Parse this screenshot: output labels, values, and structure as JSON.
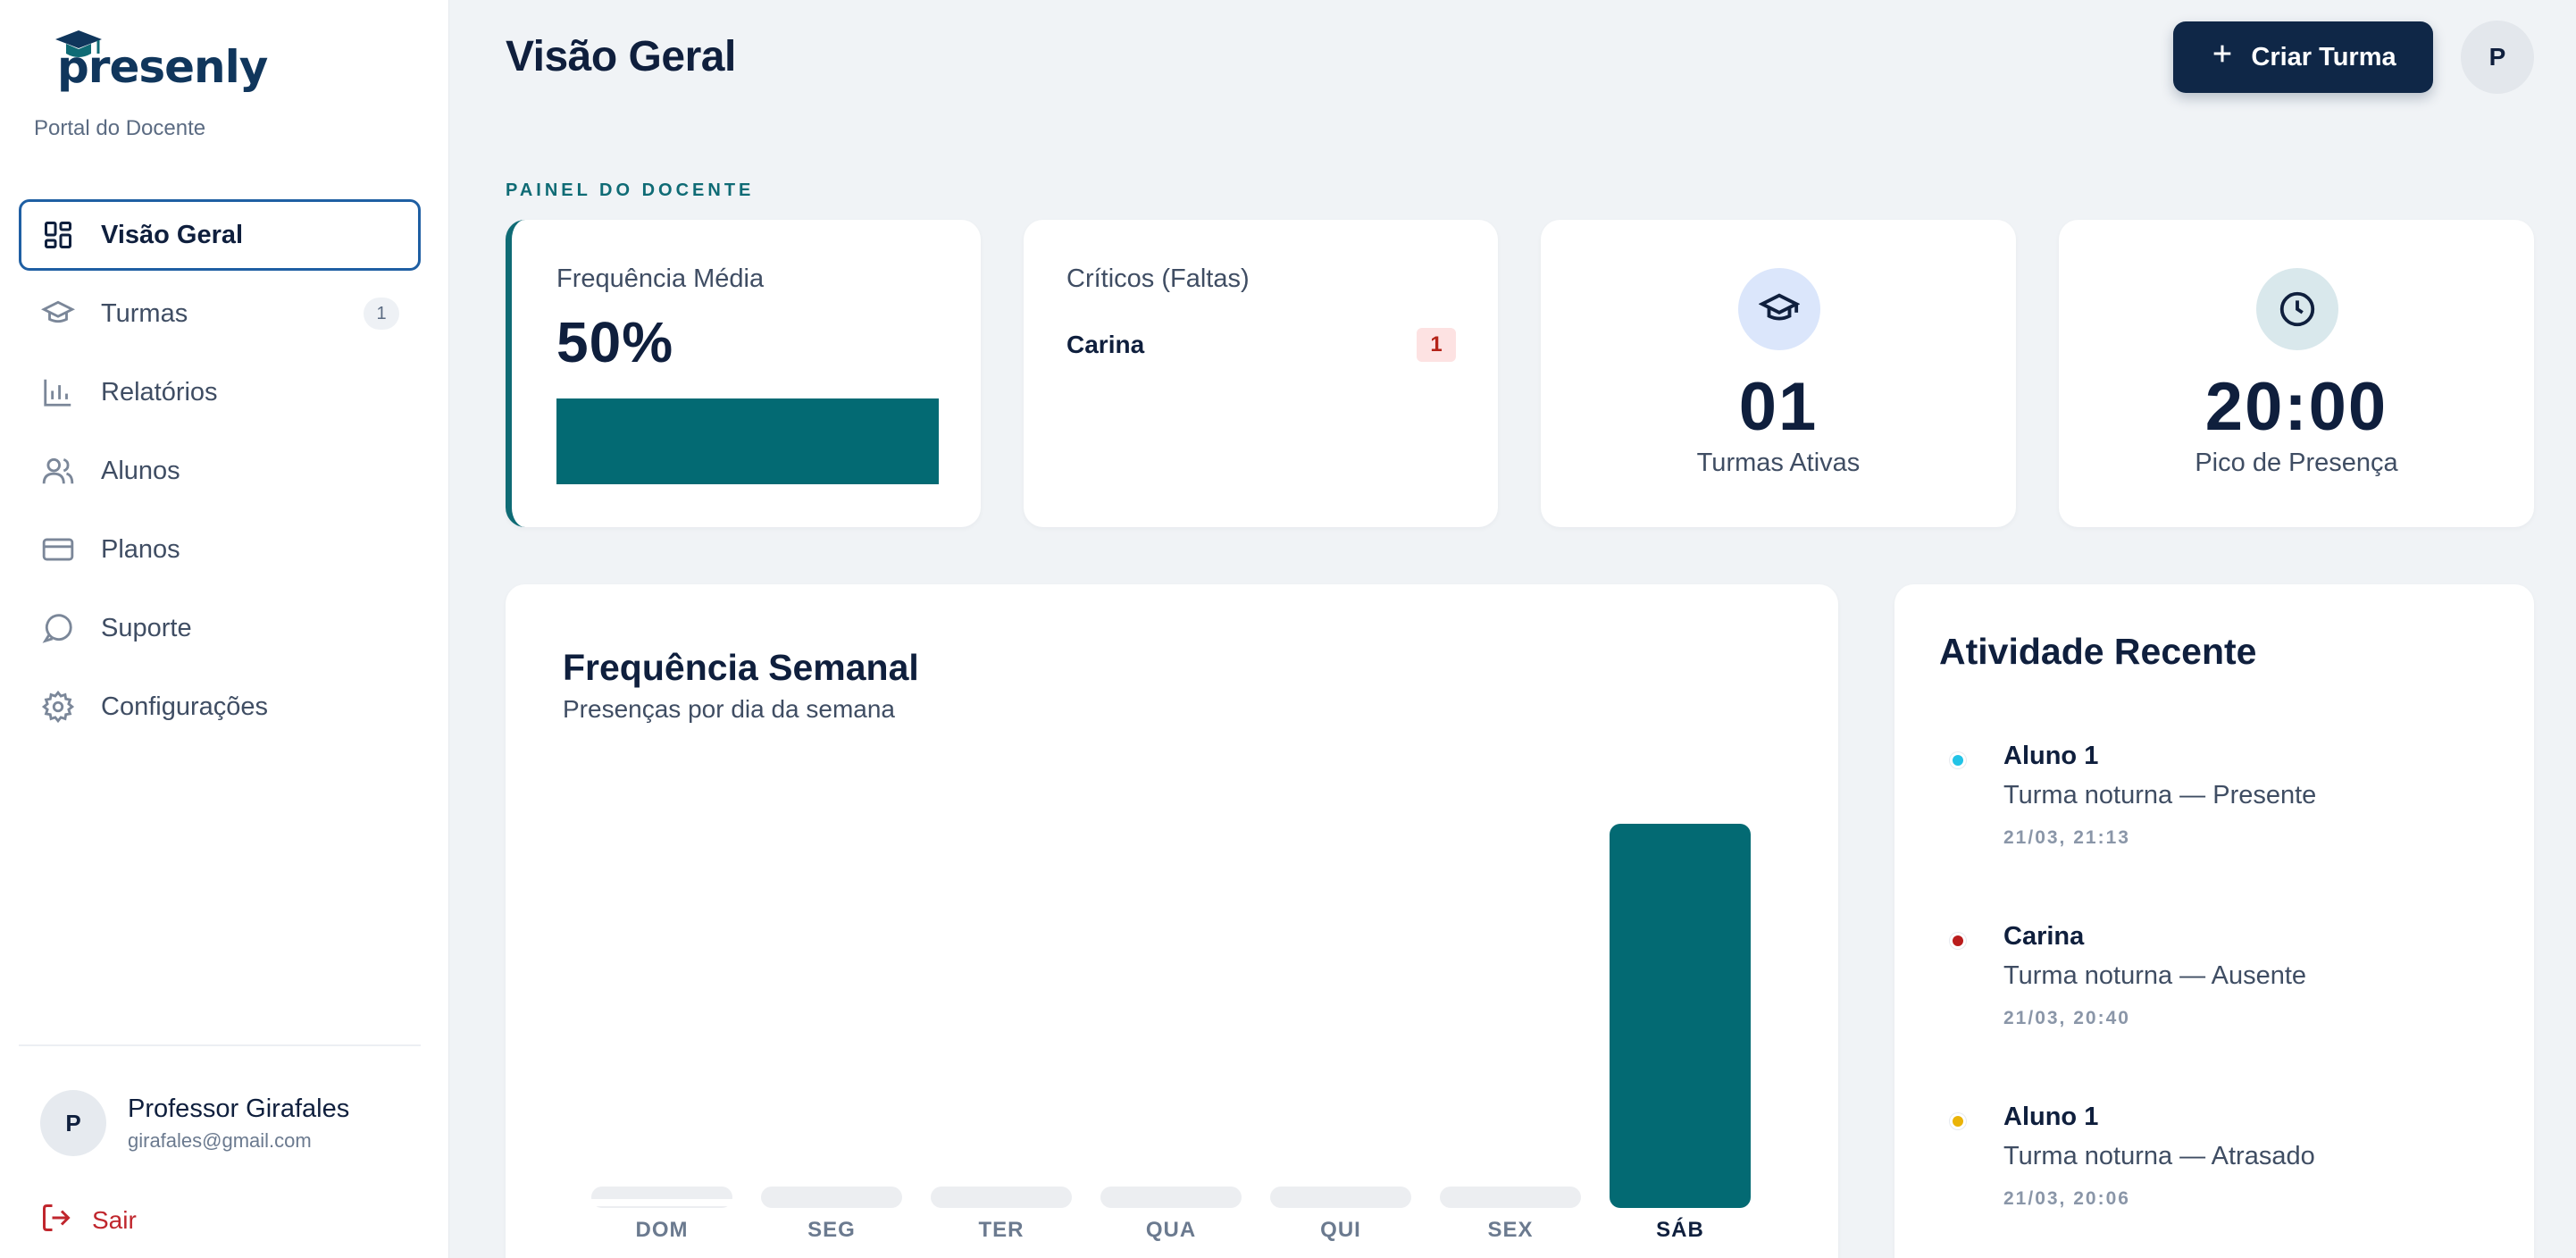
{
  "brand": {
    "logo_text": "presenly",
    "subtitle": "Portal do Docente"
  },
  "sidebar": {
    "items": [
      {
        "label": "Visão Geral",
        "icon": "dashboard-grid-icon",
        "active": true
      },
      {
        "label": "Turmas",
        "icon": "graduation-cap-icon",
        "badge": "1"
      },
      {
        "label": "Relatórios",
        "icon": "bar-chart-icon"
      },
      {
        "label": "Alunos",
        "icon": "users-icon"
      },
      {
        "label": "Planos",
        "icon": "credit-card-icon"
      },
      {
        "label": "Suporte",
        "icon": "message-circle-icon"
      },
      {
        "label": "Configurações",
        "icon": "gear-icon"
      }
    ],
    "user": {
      "initial": "P",
      "name": "Professor Girafales",
      "email": "girafales@gmail.com"
    },
    "logout_label": "Sair"
  },
  "header": {
    "title": "Visão Geral",
    "create_button_label": "Criar Turma",
    "avatar_initial": "P"
  },
  "section_label": "PAINEL DO DOCENTE",
  "stats": {
    "average_frequency": {
      "title": "Frequência Média",
      "value": "50%",
      "fraction": 1.0
    },
    "critical": {
      "title": "Críticos (Faltas)",
      "rows": [
        {
          "name": "Carina",
          "count": "1"
        }
      ]
    },
    "active_classes": {
      "value": "01",
      "label": "Turmas Ativas",
      "icon": "graduation-cap-icon"
    },
    "peak_attendance": {
      "value": "20:00",
      "label": "Pico de Presença",
      "icon": "clock-icon"
    }
  },
  "weekly_chart": {
    "title": "Frequência Semanal",
    "subtitle": "Presenças por dia da semana"
  },
  "chart_data": {
    "type": "bar",
    "title": "Frequência Semanal",
    "subtitle": "Presenças por dia da semana",
    "categories": [
      "DOM",
      "SEG",
      "TER",
      "QUA",
      "QUI",
      "SEX",
      "SÁB"
    ],
    "values": [
      0,
      0,
      0,
      0,
      0,
      0,
      1
    ],
    "highlight_category": "SÁB",
    "colors": {
      "bar": "#036a73",
      "empty": "#eceef1"
    },
    "grid": false
  },
  "activity": {
    "title": "Atividade Recente",
    "items": [
      {
        "name": "Aluno 1",
        "desc": "Turma noturna — Presente",
        "time": "21/03, 21:13",
        "color": "#22c3e6"
      },
      {
        "name": "Carina",
        "desc": "Turma noturna — Ausente",
        "time": "21/03, 20:40",
        "color": "#b91c1c"
      },
      {
        "name": "Aluno 1",
        "desc": "Turma noturna — Atrasado",
        "time": "21/03, 20:06",
        "color": "#eab308"
      }
    ]
  },
  "colors": {
    "primary": "#0f2747",
    "accent": "#036a73",
    "danger": "#c0262d"
  }
}
